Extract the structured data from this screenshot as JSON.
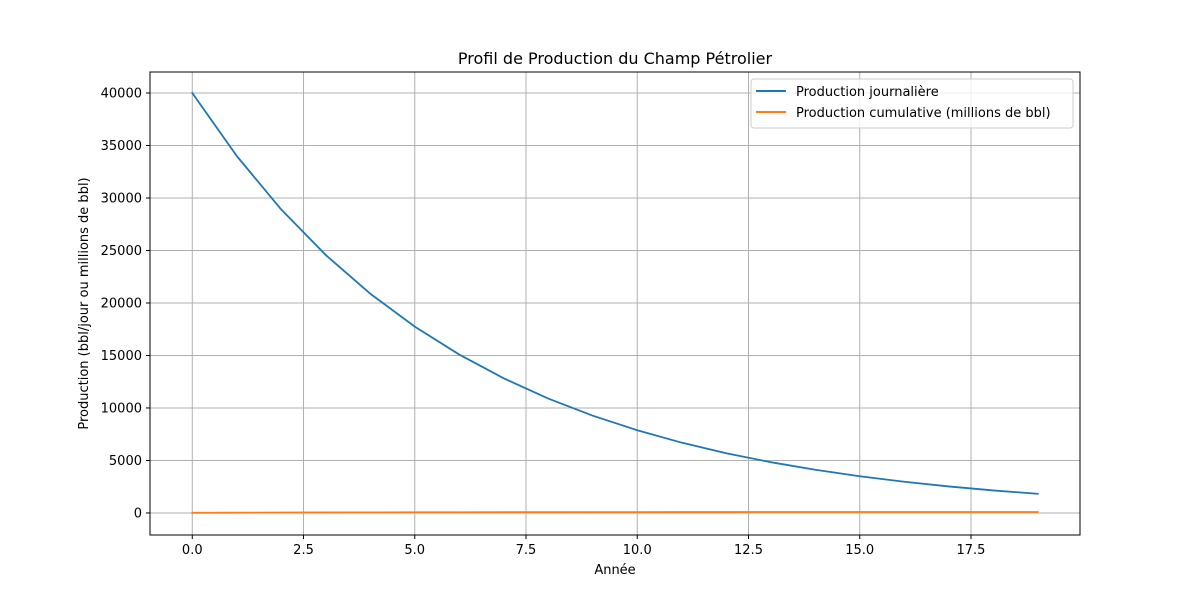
{
  "chart_data": {
    "type": "line",
    "title": "Profil de Production du Champ Pétrolier",
    "xlabel": "Année",
    "ylabel": "Production (bbl/jour ou millions de bbl)",
    "xlim": [
      -0.95,
      19.95
    ],
    "ylim": [
      -2100,
      42000
    ],
    "grid": true,
    "legend_position": "top-right",
    "x_ticks": [
      0.0,
      2.5,
      5.0,
      7.5,
      10.0,
      12.5,
      15.0,
      17.5
    ],
    "x_tick_labels": [
      "0.0",
      "2.5",
      "5.0",
      "7.5",
      "10.0",
      "12.5",
      "15.0",
      "17.5"
    ],
    "y_ticks": [
      0,
      5000,
      10000,
      15000,
      20000,
      25000,
      30000,
      35000,
      40000
    ],
    "y_tick_labels": [
      "0",
      "5000",
      "10000",
      "15000",
      "20000",
      "25000",
      "30000",
      "35000",
      "40000"
    ],
    "x": [
      0,
      1,
      2,
      3,
      4,
      5,
      6,
      7,
      8,
      9,
      10,
      11,
      12,
      13,
      14,
      15,
      16,
      17,
      18,
      19
    ],
    "series": [
      {
        "name": "Production journalière",
        "color": "#1f77b4",
        "values": [
          40000,
          34000,
          28900,
          24565,
          20880,
          17748,
          15086,
          12823,
          10899,
          9264,
          7875,
          6693,
          5689,
          4836,
          4111,
          3494,
          2970,
          2524,
          2146,
          1824
        ]
      },
      {
        "name": "Production cumulative (millions de bbl)",
        "color": "#ff7f0e",
        "values": [
          14.6,
          27.0,
          37.5,
          46.5,
          54.1,
          60.6,
          66.1,
          70.8,
          74.8,
          78.2,
          81.1,
          83.5,
          85.6,
          87.4,
          88.9,
          90.1,
          91.2,
          92.1,
          92.9,
          93.6
        ]
      }
    ]
  }
}
